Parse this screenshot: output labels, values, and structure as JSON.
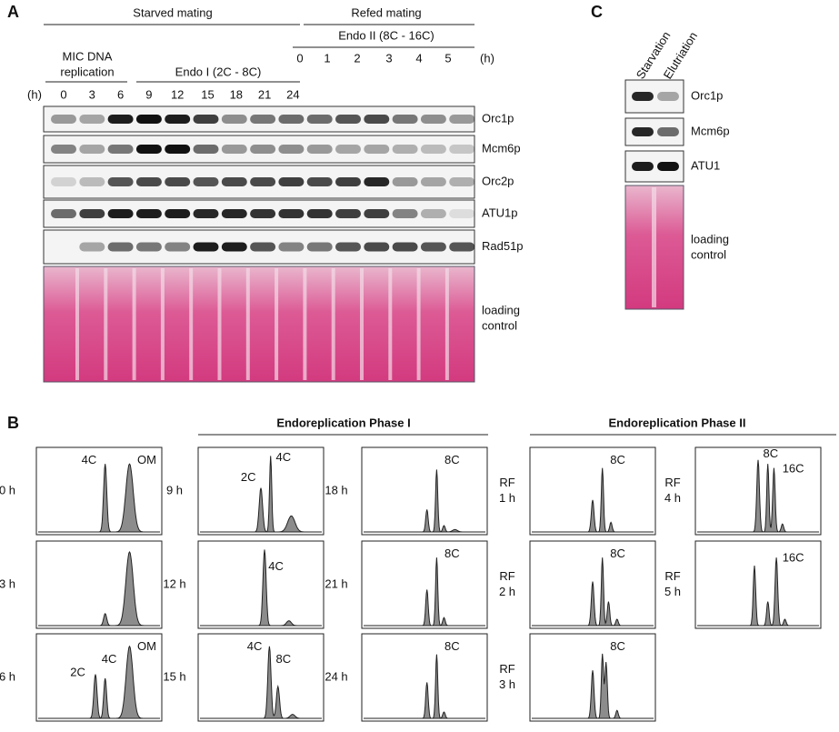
{
  "panel_a": {
    "letter": "A",
    "starved_header": "Starved mating",
    "refed_header": "Refed mating",
    "endo2_header": "Endo II (8C - 16C)",
    "mic_header": [
      "MIC DNA",
      "replication"
    ],
    "endo1_header": "Endo I (2C - 8C)",
    "starved_unit": "(h)",
    "refed_unit": "(h)",
    "starved_times": [
      "0",
      "3",
      "6",
      "9",
      "12",
      "15",
      "18",
      "21",
      "24"
    ],
    "refed_times": [
      "0",
      "1",
      "2",
      "3",
      "4",
      "5"
    ],
    "blots": [
      "Orc1p",
      "Mcm6p",
      "Orc2p",
      "ATU1p",
      "Rad51p"
    ],
    "loading": [
      "loading",
      "control"
    ]
  },
  "panel_c": {
    "letter": "C",
    "lanes": [
      "Starvation",
      "Elutriation"
    ],
    "blots": [
      "Orc1p",
      "Mcm6p",
      "ATU1"
    ],
    "loading": [
      "loading",
      "control"
    ]
  },
  "panel_b": {
    "letter": "B",
    "phase1": "Endoreplication Phase I",
    "phase2": "Endoreplication Phase II",
    "panels": [
      {
        "time": [
          "0 h"
        ],
        "peaks": [
          "4C",
          "OM"
        ]
      },
      {
        "time": [
          "3 h"
        ],
        "peaks": []
      },
      {
        "time": [
          "6 h"
        ],
        "peaks": [
          "2C",
          "4C",
          "OM"
        ]
      },
      {
        "time": [
          "9 h"
        ],
        "peaks": [
          "2C",
          "4C"
        ]
      },
      {
        "time": [
          "12 h"
        ],
        "peaks": [
          "4C"
        ]
      },
      {
        "time": [
          "15 h"
        ],
        "peaks": [
          "4C",
          "8C"
        ]
      },
      {
        "time": [
          "18 h"
        ],
        "peaks": [
          "8C"
        ]
      },
      {
        "time": [
          "21 h"
        ],
        "peaks": [
          "8C"
        ]
      },
      {
        "time": [
          "24 h"
        ],
        "peaks": [
          "8C"
        ]
      },
      {
        "time": [
          "RF",
          "1 h"
        ],
        "peaks": [
          "8C"
        ]
      },
      {
        "time": [
          "RF",
          "2 h"
        ],
        "peaks": [
          "8C"
        ]
      },
      {
        "time": [
          "RF",
          "3 h"
        ],
        "peaks": [
          "8C"
        ]
      },
      {
        "time": [
          "RF",
          "4 h"
        ],
        "peaks": [
          "8C",
          "16C"
        ]
      },
      {
        "time": [
          "RF",
          "5 h"
        ],
        "peaks": [
          "16C"
        ]
      }
    ]
  }
}
